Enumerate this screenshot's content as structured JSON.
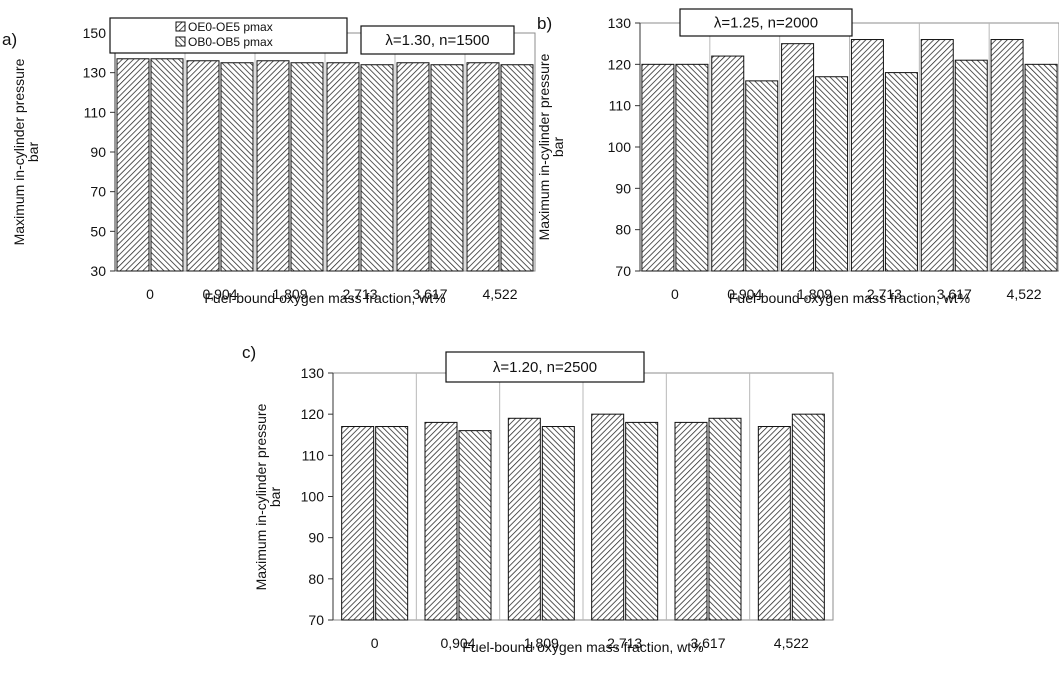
{
  "figure": {
    "legend": {
      "placement": "top-left",
      "entries": [
        "OE0-OE5 pmax",
        "OB0-OB5 pmax"
      ]
    }
  },
  "chart_data": [
    {
      "type": "bar",
      "panel": "a)",
      "annotation": "λ=1.30, n=1500",
      "categories": [
        "0",
        "0,904",
        "1,809",
        "2,713",
        "3,617",
        "4,522"
      ],
      "series": [
        {
          "name": "OE0-OE5 pmax",
          "values": [
            137,
            136,
            136,
            135,
            135,
            135
          ]
        },
        {
          "name": "OB0-OB5 pmax",
          "values": [
            137,
            135,
            135,
            134,
            134,
            134
          ]
        }
      ],
      "xlabel": "Fuel-bound oxygen mass fraction, wt%",
      "ylabel": "Maximum in-cylinder pressure, bar",
      "ylabel_lines": [
        "Maximum in-cylinder pressure",
        "bar"
      ],
      "ylim": [
        30,
        150
      ],
      "yticks": [
        30,
        50,
        70,
        90,
        110,
        130,
        150
      ],
      "grid": "vertical",
      "legend": "top-left"
    },
    {
      "type": "bar",
      "panel": "b)",
      "annotation": "λ=1.25, n=2000",
      "categories": [
        "0",
        "0,904",
        "1,809",
        "2,713",
        "3,617",
        "4,522"
      ],
      "series": [
        {
          "name": "OE0-OE5 pmax",
          "values": [
            120,
            122,
            125,
            126,
            126,
            126
          ]
        },
        {
          "name": "OB0-OB5 pmax",
          "values": [
            120,
            116,
            117,
            118,
            121,
            120
          ]
        }
      ],
      "xlabel": "Fuel-bound oxygen mass fraction, wt%",
      "ylabel": "Maximum in-cylinder pressure, bar",
      "ylabel_lines": [
        "Maximum in-cylinder pressure",
        "bar"
      ],
      "ylim": [
        70,
        130
      ],
      "yticks": [
        70,
        80,
        90,
        100,
        110,
        120,
        130
      ],
      "grid": "vertical"
    },
    {
      "type": "bar",
      "panel": "c)",
      "annotation": "λ=1.20, n=2500",
      "categories": [
        "0",
        "0,904",
        "1,809",
        "2,713",
        "3,617",
        "4,522"
      ],
      "series": [
        {
          "name": "OE0-OE5 pmax",
          "values": [
            117,
            118,
            119,
            120,
            118,
            117
          ]
        },
        {
          "name": "OB0-OB5 pmax",
          "values": [
            117,
            116,
            117,
            118,
            119,
            120
          ]
        }
      ],
      "xlabel": "Fuel-bound oxygen mass fraction, wt%",
      "ylabel": "Maximum in-cylinder pressure, bar",
      "ylabel_lines": [
        "Maximum in-cylinder pressure",
        "bar"
      ],
      "ylim": [
        70,
        130
      ],
      "yticks": [
        70,
        80,
        90,
        100,
        110,
        120,
        130
      ],
      "grid": "vertical"
    }
  ]
}
